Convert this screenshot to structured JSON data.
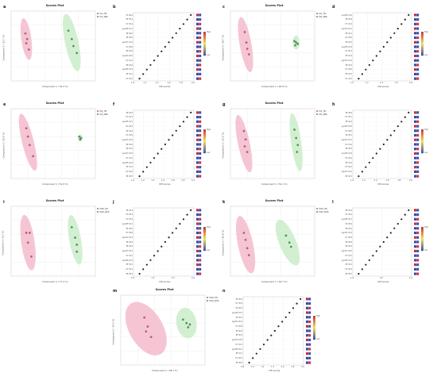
{
  "colors": {
    "pink_ellipse": "#f4b6c8",
    "pink_point": "#c45a7a",
    "green_ellipse": "#c7ecc5",
    "green_point": "#4f9a52",
    "vip_point": "#222222",
    "grid": "#e6e6e6",
    "box_blue": "#3b4da8",
    "box_red": "#c9313d"
  },
  "scores": [
    {
      "label": "a",
      "title": "Scores Plot",
      "xlabel": "Component 1 ( 35.4 %)",
      "ylabel": "Component 2 ( 11.7 %)",
      "legend": [
        "M1_HD",
        "M1_N96"
      ]
    },
    {
      "label": "c",
      "title": "Scores Plot",
      "xlabel": "Component 1 ( 46.9 %)",
      "ylabel": "Component 2 ( 14.7 %)",
      "legend": [
        "M1_HD",
        "M2_N96"
      ]
    },
    {
      "label": "e",
      "title": "Scores Plot",
      "xlabel": "Component 1 ( 51.9 %)",
      "ylabel": "Component 2 ( 15.6 %)",
      "legend": [
        "M1_HD",
        "M3_N96"
      ]
    },
    {
      "label": "g",
      "title": "Scores Plot",
      "xlabel": "Component 1 ( 52.1 %)",
      "ylabel": "Component 2 ( 12.0 %)",
      "legend": [
        "M1_HD",
        "M4_N96"
      ]
    },
    {
      "label": "i",
      "title": "Scores Plot",
      "xlabel": "Component 1 ( 77.4 %)",
      "ylabel": "Component 2 ( 9.2 %)",
      "legend": [
        "M16_HD",
        "M16_N96"
      ]
    },
    {
      "label": "k",
      "title": "Scores Plot",
      "xlabel": "Component 1 ( 49.7 %)",
      "ylabel": "Component 2 ( 10.8 %)",
      "legend": [
        "M16_HD",
        "M16_N96"
      ]
    },
    {
      "label": "m",
      "title": "Scores Plot",
      "xlabel": "Component 1 ( 38.7 %)",
      "ylabel": "Component 2 ( 20.5 %)",
      "legend": [
        "M16_HD",
        "M16_N96"
      ]
    }
  ],
  "vips": [
    {
      "label": "b",
      "xlabel": "VIP scores",
      "ticks": [
        "1.0",
        "1.2",
        "1.4",
        "1.6",
        "1.8",
        "2.0"
      ],
      "features": [
        "PS 38:4",
        "PE 36:4",
        "PC 36:4",
        "LysoPE 18:1",
        "PE 38:5",
        "PE 36:2",
        "LysoPC 20:4",
        "PC 38:6",
        "PE 40:6",
        "LysoPC 18:0",
        "PC 34:1",
        "PE 38:4",
        "LysoPE 20:4",
        "PE 34:1",
        "PC 36:2"
      ]
    },
    {
      "label": "d",
      "xlabel": "VIP scores",
      "ticks": [
        "1.0",
        "1.2",
        "1.4",
        "1.6",
        "1.8"
      ],
      "features": [
        "LysoPE 18:0",
        "PE 38:6",
        "PC 34:2",
        "LysoPC 18:1",
        "PE 36:1",
        "PC 38:4",
        "PE 40:5",
        "LysoPE 22:6",
        "PC 36:3",
        "PE 34:2",
        "LysoPC 16:0",
        "PE 38:3",
        "PC 40:6",
        "PE 36:3",
        "PC 32:0"
      ]
    },
    {
      "label": "f",
      "xlabel": "VIP scores",
      "ticks": [
        "1.0",
        "1.2",
        "1.4",
        "1.6",
        "1.8",
        "2.0",
        "2.2"
      ],
      "features": [
        "PE 38:4",
        "PC 36:4",
        "LysoPE 18:1",
        "PS 38:4",
        "PE 36:4",
        "PC 38:6",
        "LysoPC 20:4",
        "PE 40:6",
        "PE 36:2",
        "LysoPC 18:0",
        "PC 34:1",
        "LysoPE 20:4",
        "PE 34:1",
        "PC 36:2",
        "PE 38:5"
      ]
    },
    {
      "label": "h",
      "xlabel": "VIP scores",
      "ticks": [
        "1.0",
        "1.2",
        "1.4",
        "1.6",
        "1.8",
        "2.0"
      ],
      "features": [
        "PE 38:6",
        "PC 36:1",
        "PE 40:4",
        "LysoPE 18:0",
        "PC 38:5",
        "PE 36:1",
        "LysoPC 18:1",
        "PC 34:2",
        "PE 38:3",
        "LysoPE 22:6",
        "PC 40:6",
        "PE 34:2",
        "PC 36:3",
        "LysoPC 16:0",
        "PE 36:3"
      ]
    },
    {
      "label": "j",
      "xlabel": "VIP scores",
      "ticks": [
        "0.5",
        "1.0",
        "1.5",
        "2.0"
      ],
      "features": [
        "PE 36:4",
        "PS 38:4",
        "PC 36:4",
        "LysoPE 18:1",
        "PE 38:4",
        "PC 38:6",
        "LysoPC 20:4",
        "PE 40:6",
        "PE 36:2",
        "LysoPC 18:0",
        "PC 34:1",
        "LysoPE 20:4",
        "PE 34:1",
        "PC 36:2",
        "PE 38:5"
      ]
    },
    {
      "label": "l",
      "xlabel": "VIP scores",
      "ticks": [
        "1.6",
        "2.0",
        "2.4"
      ],
      "features": [
        "PE 38:4",
        "PC 36:4",
        "LysoPE 18:1",
        "PS 38:4",
        "PE 36:4",
        "LysoPC 20:4",
        "PC 38:6",
        "PE 40:6",
        "PE 36:2",
        "LysoPC 18:0",
        "PC 34:1",
        "LysoPE 20:4",
        "PE 34:1",
        "PC 36:2",
        "PE 38:5"
      ]
    },
    {
      "label": "n",
      "xlabel": "VIP scores",
      "ticks": [
        "0.8",
        "1.0",
        "1.2",
        "1.4",
        "1.6",
        "1.8",
        "2.0"
      ],
      "features": [
        "PE 38:4",
        "PC 36:4",
        "PS 38:4",
        "LysoPE 18:1",
        "PE 36:4",
        "LysoPC 20:4",
        "PC 38:6",
        "PE 40:6",
        "PE 36:2",
        "LysoPC 18:0",
        "PC 34:1",
        "LysoPE 20:4",
        "PE 34:1",
        "PC 36:2",
        "PE 38:5"
      ]
    }
  ],
  "colorbar": {
    "high": "High",
    "low": "Low"
  }
}
